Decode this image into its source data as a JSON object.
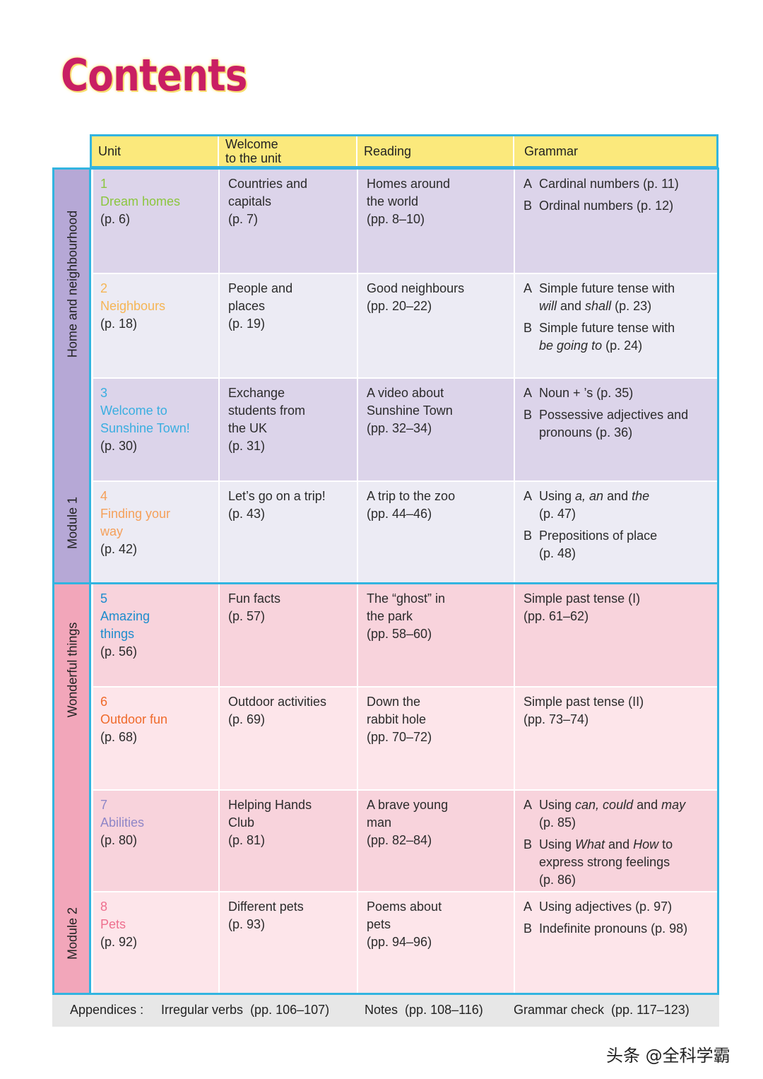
{
  "title": "Contents",
  "headers": [
    "Unit",
    "Welcome\nto the unit",
    "Reading",
    "Grammar"
  ],
  "modules": [
    {
      "theme": "Home and neighbourhood",
      "label": "Module 1",
      "units": [
        {
          "number": "1",
          "name": "Dream homes",
          "page": "(p. 6)",
          "color": "#8cc63f",
          "welcome": [
            "Countries and",
            "capitals",
            "(p. 7)"
          ],
          "reading": [
            "Homes around",
            "the world",
            "(pp. 8–10)"
          ],
          "grammar": [
            {
              "letter": "A",
              "lines": [
                "Cardinal numbers (p. 11)"
              ]
            },
            {
              "letter": "B",
              "lines": [
                "Ordinal numbers (p. 12)"
              ]
            }
          ]
        },
        {
          "number": "2",
          "name": "Neighbours",
          "page": "(p. 18)",
          "color": "#f5b555",
          "welcome": [
            "People and",
            "places",
            "(p. 19)"
          ],
          "reading": [
            "Good neighbours",
            "(pp. 20–22)"
          ],
          "grammar": [
            {
              "letter": "A",
              "lines": [
                "Simple future tense with",
                "will and shall (p. 23)"
              ]
            },
            {
              "letter": "B",
              "lines": [
                "Simple future tense with",
                "be going to (p. 24)"
              ]
            }
          ]
        },
        {
          "number": "3",
          "name": "Welcome to Sunshine Town!",
          "name_lines": [
            "Welcome to",
            "Sunshine Town!"
          ],
          "page": "(p. 30)",
          "color": "#3aaee0",
          "welcome": [
            "Exchange",
            "students from",
            "the UK",
            "(p. 31)"
          ],
          "reading": [
            "A video about",
            "Sunshine Town",
            "(pp. 32–34)"
          ],
          "grammar": [
            {
              "letter": "A",
              "lines": [
                "Noun + ’s (p. 35)"
              ]
            },
            {
              "letter": "B",
              "lines": [
                "Possessive adjectives and",
                "pronouns (p. 36)"
              ]
            }
          ]
        },
        {
          "number": "4",
          "name": "Finding your way",
          "name_lines": [
            "Finding your",
            "way"
          ],
          "page": "(p. 42)",
          "color": "#f5a05a",
          "welcome": [
            "Let’s go on a trip!",
            "(p. 43)"
          ],
          "reading": [
            "A trip to the zoo",
            "(pp. 44–46)"
          ],
          "grammar": [
            {
              "letter": "A",
              "lines": [
                "Using a, an and the",
                "(p. 47)"
              ]
            },
            {
              "letter": "B",
              "lines": [
                "Prepositions of place",
                "(p. 48)"
              ]
            }
          ]
        }
      ]
    },
    {
      "theme": "Wonderful things",
      "label": "Module 2",
      "units": [
        {
          "number": "5",
          "name": "Amazing things",
          "name_lines": [
            "Amazing",
            "things"
          ],
          "page": "(p. 56)",
          "color": "#1d8ccd",
          "welcome": [
            "Fun facts",
            "(p. 57)"
          ],
          "reading": [
            "The “ghost” in",
            "the park",
            "(pp. 58–60)"
          ],
          "grammar": [
            {
              "letter": "",
              "lines": [
                "Simple past tense (I)",
                "(pp. 61–62)"
              ]
            }
          ]
        },
        {
          "number": "6",
          "name": "Outdoor fun",
          "page": "(p. 68)",
          "color": "#ef6a2a",
          "welcome": [
            "Outdoor activities",
            "(p. 69)"
          ],
          "reading": [
            "Down the",
            "rabbit hole",
            "(pp. 70–72)"
          ],
          "grammar": [
            {
              "letter": "",
              "lines": [
                "Simple past tense (II)",
                "(pp. 73–74)"
              ]
            }
          ]
        },
        {
          "number": "7",
          "name": "Abilities",
          "page": "(p. 80)",
          "color": "#8f86c7",
          "welcome": [
            "Helping Hands",
            "Club",
            "(p. 81)"
          ],
          "reading": [
            "A brave young",
            "man",
            "(pp. 82–84)"
          ],
          "grammar": [
            {
              "letter": "A",
              "lines": [
                "Using can, could and may",
                "(p. 85)"
              ]
            },
            {
              "letter": "B",
              "lines": [
                "Using What and How to",
                "express strong feelings",
                "(p. 86)"
              ]
            }
          ]
        },
        {
          "number": "8",
          "name": "Pets",
          "page": "(p. 92)",
          "color": "#ee6f8e",
          "welcome": [
            "Different pets",
            "(p. 93)"
          ],
          "reading": [
            "Poems about",
            "pets",
            "(pp. 94–96)"
          ],
          "grammar": [
            {
              "letter": "A",
              "lines": [
                "Using adjectives (p. 97)"
              ]
            },
            {
              "letter": "B",
              "lines": [
                "Indefinite pronouns (p. 98)"
              ]
            }
          ]
        }
      ]
    }
  ],
  "appendices": {
    "label": "Appendices :",
    "items": [
      {
        "name": "Irregular verbs",
        "pages": "(pp. 106–107)"
      },
      {
        "name": "Notes",
        "pages": "(pp. 108–116)"
      },
      {
        "name": "Grammar check",
        "pages": "(pp. 117–123)"
      }
    ]
  },
  "credit": "头条 @全科学霸",
  "colors": {
    "module1_dark": "#dcd4ea",
    "module1_light": "#ecebf4",
    "module1_band": "#b6a8d6",
    "module2_dark": "#f8d3dc",
    "module2_light": "#fde5ea",
    "module2_band": "#f2a6ba",
    "border": "#32b4e0",
    "header": "#fbe97c"
  }
}
